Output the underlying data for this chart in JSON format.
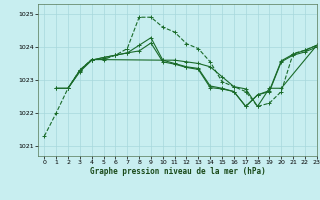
{
  "title": "Graphe pression niveau de la mer (hPa)",
  "bg_color": "#c8eef0",
  "grid_color": "#a8d8dc",
  "line_color": "#1a6b2a",
  "xlim": [
    -0.5,
    23
  ],
  "ylim": [
    1020.7,
    1025.3
  ],
  "yticks": [
    1021,
    1022,
    1023,
    1024,
    1025
  ],
  "xticks": [
    0,
    1,
    2,
    3,
    4,
    5,
    6,
    7,
    8,
    9,
    10,
    11,
    12,
    13,
    14,
    15,
    16,
    17,
    18,
    19,
    20,
    21,
    22,
    23
  ],
  "line1_x": [
    0,
    1,
    2,
    3,
    4,
    5,
    6,
    7,
    8,
    9,
    10,
    11,
    12,
    13,
    14,
    15,
    16,
    17,
    18,
    19,
    20,
    21,
    22,
    23
  ],
  "line1_y": [
    1021.3,
    1022.0,
    1022.75,
    1023.3,
    1023.62,
    1023.62,
    1023.75,
    1023.95,
    1024.9,
    1024.9,
    1024.6,
    1024.45,
    1024.1,
    1023.95,
    1023.55,
    1022.95,
    1022.8,
    1022.65,
    1022.2,
    1022.3,
    1022.65,
    1023.8,
    1023.9,
    1024.05
  ],
  "line2_x": [
    2,
    3,
    4,
    10,
    11,
    12,
    13,
    14,
    15,
    16,
    17,
    18,
    19,
    20,
    23
  ],
  "line2_y": [
    1022.75,
    1023.3,
    1023.62,
    1023.6,
    1023.6,
    1023.55,
    1023.5,
    1023.4,
    1023.1,
    1022.8,
    1022.73,
    1022.2,
    1022.75,
    1022.75,
    1024.05
  ],
  "line3_x": [
    1,
    2,
    3,
    4,
    5,
    6,
    7,
    8,
    9,
    10,
    11,
    12,
    13,
    14,
    15,
    16,
    17,
    18,
    19,
    20,
    21,
    22,
    23
  ],
  "line3_y": [
    1022.75,
    1022.75,
    1023.25,
    1023.6,
    1023.68,
    1023.75,
    1023.82,
    1024.05,
    1024.28,
    1023.6,
    1023.5,
    1023.4,
    1023.35,
    1022.82,
    1022.75,
    1022.65,
    1022.2,
    1022.55,
    1022.65,
    1023.55,
    1023.75,
    1023.85,
    1024.0
  ],
  "line4_x": [
    1,
    2,
    3,
    4,
    5,
    6,
    7,
    8,
    9,
    10,
    11,
    12,
    13,
    14,
    15,
    16,
    17,
    18,
    19,
    20,
    21,
    22,
    23
  ],
  "line4_y": [
    1022.75,
    1022.75,
    1023.28,
    1023.6,
    1023.68,
    1023.75,
    1023.82,
    1023.88,
    1024.12,
    1023.55,
    1023.48,
    1023.38,
    1023.32,
    1022.77,
    1022.73,
    1022.65,
    1022.2,
    1022.55,
    1022.68,
    1023.58,
    1023.78,
    1023.9,
    1024.05
  ]
}
